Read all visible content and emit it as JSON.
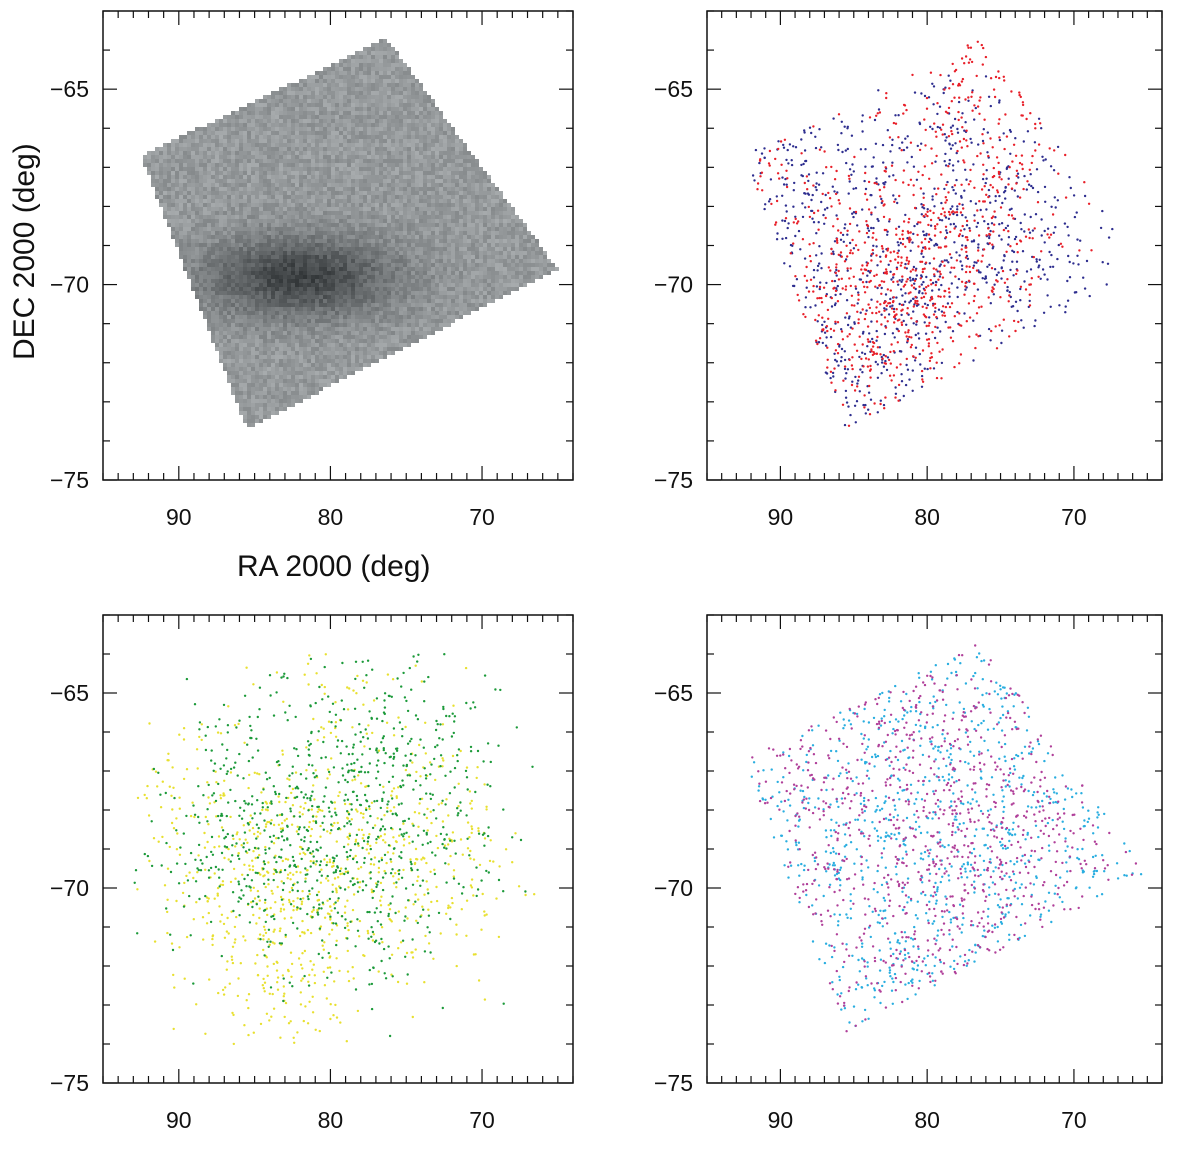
{
  "figure": {
    "xlabel": "RA 2000 (deg)",
    "ylabel": "DEC 2000 (deg)"
  },
  "chart_data": [
    {
      "type": "heatmap",
      "panel": "top-left",
      "xlim": [
        95,
        64
      ],
      "ylim": [
        -75,
        -63
      ],
      "xticks": [
        90,
        80,
        70
      ],
      "yticks": [
        -65,
        -70,
        -75
      ],
      "xtick_labels": [
        "90",
        "80",
        "70"
      ],
      "ytick_labels": [
        "−65",
        "−70",
        "−75"
      ],
      "colormap": [
        "#ffffff",
        "#222222"
      ],
      "footprint": [
        [
          92.5,
          -66.7
        ],
        [
          76.3,
          -63.7
        ],
        [
          65,
          -69.6
        ],
        [
          85.5,
          -73.7
        ]
      ],
      "density_peak": [
        82,
        -69.8
      ]
    },
    {
      "type": "scatter",
      "panel": "top-right",
      "xlim": [
        95,
        64
      ],
      "ylim": [
        -75,
        -63
      ],
      "xticks": [
        90,
        80,
        70
      ],
      "yticks": [
        -65,
        -70,
        -75
      ],
      "xtick_labels": [
        "90",
        "80",
        "70"
      ],
      "ytick_labels": [
        "−65",
        "−70",
        "−75"
      ],
      "footprint": [
        [
          92.5,
          -66.7
        ],
        [
          76.3,
          -63.7
        ],
        [
          65,
          -69.6
        ],
        [
          85.5,
          -73.7
        ]
      ],
      "series": [
        {
          "color": "#2e2e8f",
          "points": [
            [
              80,
              -69.5
            ],
            [
              84,
              -70
            ],
            [
              77,
              -69.2
            ],
            [
              74,
              -68
            ],
            [
              86,
              -71.5
            ],
            [
              88,
              -68
            ],
            [
              79,
              -66
            ],
            [
              72,
              -70.5
            ],
            [
              83,
              -72.5
            ],
            [
              90,
              -67
            ]
          ]
        },
        {
          "color": "#e8202a",
          "points": [
            [
              80.5,
              -69.6
            ],
            [
              84.5,
              -70
            ],
            [
              78,
              -69.4
            ],
            [
              82,
              -69.8
            ],
            [
              76,
              -68.5
            ],
            [
              87,
              -71
            ],
            [
              79,
              -65.5
            ],
            [
              75,
              -64.5
            ],
            [
              84,
              -72
            ],
            [
              91,
              -67.5
            ]
          ]
        }
      ]
    },
    {
      "type": "scatter",
      "panel": "bottom-left",
      "xlim": [
        95,
        64
      ],
      "ylim": [
        -75,
        -63
      ],
      "xticks": [
        90,
        80,
        70
      ],
      "yticks": [
        -65,
        -70,
        -75
      ],
      "xtick_labels": [
        "90",
        "80",
        "70"
      ],
      "ytick_labels": [
        "−65",
        "−70",
        "−75"
      ],
      "series": [
        {
          "color": "#e8e030",
          "points": [
            [
              80,
              -69.5
            ],
            [
              84,
              -70.5
            ],
            [
              78,
              -69
            ],
            [
              82,
              -71
            ],
            [
              86,
              -70
            ],
            [
              75,
              -68.5
            ],
            [
              88,
              -68
            ],
            [
              83,
              -72.5
            ],
            [
              73,
              -70
            ],
            [
              79,
              -65
            ]
          ]
        },
        {
          "color": "#1c9a3a",
          "points": [
            [
              83,
              -67
            ],
            [
              76,
              -66.2
            ],
            [
              85,
              -69.3
            ],
            [
              82,
              -69.2
            ],
            [
              74,
              -69.5
            ],
            [
              77.5,
              -70.6
            ],
            [
              80,
              -68
            ],
            [
              74,
              -66.8
            ],
            [
              87,
              -68
            ],
            [
              78,
              -68.5
            ]
          ]
        }
      ]
    },
    {
      "type": "scatter",
      "panel": "bottom-right",
      "xlim": [
        95,
        64
      ],
      "ylim": [
        -75,
        -63
      ],
      "xticks": [
        90,
        80,
        70
      ],
      "yticks": [
        -65,
        -70,
        -75
      ],
      "xtick_labels": [
        "90",
        "80",
        "70"
      ],
      "ytick_labels": [
        "−65",
        "−70",
        "−75"
      ],
      "footprint": [
        [
          92.5,
          -66.7
        ],
        [
          76.3,
          -63.7
        ],
        [
          65,
          -69.6
        ],
        [
          85.5,
          -73.7
        ]
      ],
      "series": [
        {
          "color": "#2aaee0",
          "points": [
            [
              90,
              -67
            ],
            [
              80,
              -65
            ],
            [
              70,
              -68
            ],
            [
              85,
              -72
            ],
            [
              78,
              -70
            ],
            [
              72,
              -71
            ],
            [
              88,
              -70
            ],
            [
              82,
              -68
            ],
            [
              75,
              -66
            ],
            [
              80,
              -72.5
            ]
          ]
        },
        {
          "color": "#b0409a",
          "points": [
            [
              85,
              -68
            ],
            [
              78,
              -66
            ],
            [
              74,
              -70
            ],
            [
              82,
              -71.5
            ],
            [
              88,
              -69
            ],
            [
              80,
              -69
            ],
            [
              76,
              -72
            ],
            [
              84,
              -66.5
            ],
            [
              71,
              -69
            ],
            [
              79,
              -67.5
            ]
          ]
        }
      ]
    }
  ]
}
